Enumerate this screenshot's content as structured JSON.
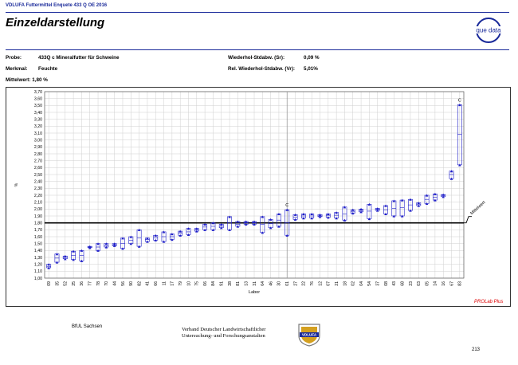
{
  "header": {
    "top_title": "VDLUFA Futtermittel Enquete 433 Q OE 2016",
    "title": "Einzeldarstellung",
    "logo_text": "que data"
  },
  "meta": {
    "probe_label": "Probe:",
    "probe_value": "433Q c Mineralfutter für Schweine",
    "merkmal_label": "Merkmal:",
    "merkmal_value": "Feuchte",
    "mittelwert_label": "Mittelwert:",
    "mittelwert_value": "1,80 %",
    "sr_label": "Wiederhol-Stdabw. (Sr):",
    "sr_value": "0,09 %",
    "vr_label": "Rel. Wiederhol-Stdabw. (Vr):",
    "vr_value": "5,01%"
  },
  "chart_data": {
    "type": "scatter",
    "xlabel": "Labor",
    "ylabel": "%",
    "ylim": [
      1.0,
      3.7
    ],
    "ytick_step": 0.1,
    "mean": 1.8,
    "mean_label": "Mittelwert",
    "flag_label": "C",
    "grid": true,
    "colors": {
      "marker": "#1c1cc8",
      "mean_line": "#000000",
      "separator": "#9a9a9a",
      "grid": "#cfcfcf"
    },
    "labs": [
      {
        "labor": "09",
        "low": 1.15,
        "high": 1.2,
        "mean": 1.17
      },
      {
        "labor": "35",
        "low": 1.23,
        "high": 1.35,
        "mean": 1.29
      },
      {
        "labor": "52",
        "low": 1.28,
        "high": 1.32,
        "mean": 1.3
      },
      {
        "labor": "25",
        "low": 1.27,
        "high": 1.39,
        "mean": 1.33
      },
      {
        "labor": "36",
        "low": 1.25,
        "high": 1.4,
        "mean": 1.33
      },
      {
        "labor": "77",
        "low": 1.44,
        "high": 1.46,
        "mean": 1.45
      },
      {
        "labor": "78",
        "low": 1.4,
        "high": 1.5,
        "mean": 1.45
      },
      {
        "labor": "70",
        "low": 1.45,
        "high": 1.5,
        "mean": 1.47
      },
      {
        "labor": "44",
        "low": 1.47,
        "high": 1.5,
        "mean": 1.48
      },
      {
        "labor": "56",
        "low": 1.43,
        "high": 1.58,
        "mean": 1.5
      },
      {
        "labor": "90",
        "low": 1.5,
        "high": 1.6,
        "mean": 1.55
      },
      {
        "labor": "82",
        "low": 1.46,
        "high": 1.7,
        "mean": 1.58
      },
      {
        "labor": "41",
        "low": 1.53,
        "high": 1.58,
        "mean": 1.56
      },
      {
        "labor": "66",
        "low": 1.55,
        "high": 1.62,
        "mean": 1.58
      },
      {
        "labor": "11",
        "low": 1.53,
        "high": 1.67,
        "mean": 1.6
      },
      {
        "labor": "17",
        "low": 1.56,
        "high": 1.64,
        "mean": 1.6
      },
      {
        "labor": "79",
        "low": 1.62,
        "high": 1.68,
        "mean": 1.65
      },
      {
        "labor": "10",
        "low": 1.63,
        "high": 1.72,
        "mean": 1.67
      },
      {
        "labor": "75",
        "low": 1.68,
        "high": 1.72,
        "mean": 1.7
      },
      {
        "labor": "06",
        "low": 1.7,
        "high": 1.78,
        "mean": 1.74
      },
      {
        "labor": "84",
        "low": 1.7,
        "high": 1.8,
        "mean": 1.75
      },
      {
        "labor": "91",
        "low": 1.73,
        "high": 1.78,
        "mean": 1.75
      },
      {
        "labor": "28",
        "low": 1.7,
        "high": 1.89,
        "mean": 1.8
      },
      {
        "labor": "81",
        "low": 1.75,
        "high": 1.82,
        "mean": 1.78
      },
      {
        "labor": "13",
        "low": 1.78,
        "high": 1.82,
        "mean": 1.8
      },
      {
        "labor": "31",
        "low": 1.78,
        "high": 1.82,
        "mean": 1.8
      },
      {
        "labor": "64",
        "low": 1.66,
        "high": 1.89,
        "mean": 1.78
      },
      {
        "labor": "46",
        "low": 1.73,
        "high": 1.85,
        "mean": 1.79
      },
      {
        "labor": "30",
        "low": 1.75,
        "high": 1.93,
        "mean": 1.84
      },
      {
        "labor": "01",
        "low": 1.62,
        "high": 1.99,
        "mean": 1.8,
        "flag": true
      },
      {
        "labor": "27",
        "low": 1.85,
        "high": 1.92,
        "mean": 1.88
      },
      {
        "labor": "22",
        "low": 1.87,
        "high": 1.93,
        "mean": 1.9
      },
      {
        "labor": "76",
        "low": 1.87,
        "high": 1.93,
        "mean": 1.9
      },
      {
        "labor": "12",
        "low": 1.89,
        "high": 1.92,
        "mean": 1.9
      },
      {
        "labor": "07",
        "low": 1.88,
        "high": 1.93,
        "mean": 1.91
      },
      {
        "labor": "21",
        "low": 1.87,
        "high": 1.95,
        "mean": 1.91
      },
      {
        "labor": "18",
        "low": 1.84,
        "high": 2.03,
        "mean": 1.93
      },
      {
        "labor": "02",
        "low": 1.94,
        "high": 1.99,
        "mean": 1.96
      },
      {
        "labor": "04",
        "low": 1.96,
        "high": 2.0,
        "mean": 1.98
      },
      {
        "labor": "54",
        "low": 1.86,
        "high": 2.07,
        "mean": 1.97
      },
      {
        "labor": "37",
        "low": 1.98,
        "high": 2.01,
        "mean": 2.0
      },
      {
        "labor": "08",
        "low": 1.93,
        "high": 2.05,
        "mean": 1.99
      },
      {
        "labor": "43",
        "low": 1.9,
        "high": 2.12,
        "mean": 2.01
      },
      {
        "labor": "68",
        "low": 1.9,
        "high": 2.13,
        "mean": 2.02
      },
      {
        "labor": "23",
        "low": 1.98,
        "high": 2.14,
        "mean": 2.06
      },
      {
        "labor": "03",
        "low": 2.05,
        "high": 2.09,
        "mean": 2.07
      },
      {
        "labor": "05",
        "low": 2.08,
        "high": 2.2,
        "mean": 2.14
      },
      {
        "labor": "14",
        "low": 2.13,
        "high": 2.22,
        "mean": 2.17
      },
      {
        "labor": "16",
        "low": 2.18,
        "high": 2.21,
        "mean": 2.2
      },
      {
        "labor": "67",
        "low": 2.44,
        "high": 2.55,
        "mean": 2.5
      },
      {
        "labor": "83",
        "low": 2.64,
        "high": 3.51,
        "mean": 3.08,
        "flag": true
      }
    ]
  },
  "watermark": "PROLab Plus",
  "footer": {
    "left": "BfUL Sachsen",
    "center_line1": "Verband Deutscher Landwirtschaftlicher",
    "center_line2": "Untersuchung- und Forschungsanstalten",
    "logo_text": "VDLUFA",
    "page": "213"
  }
}
